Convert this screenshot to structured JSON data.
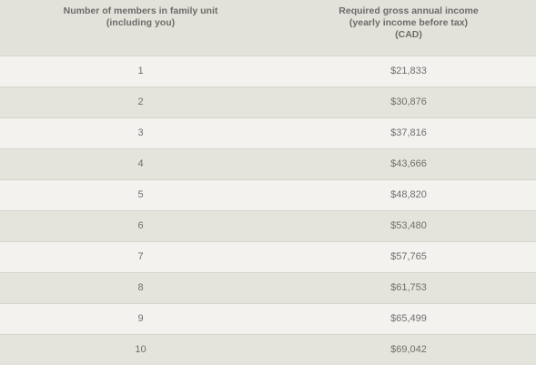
{
  "table": {
    "headers": {
      "members": [
        "Number of members in family unit",
        "(including you)"
      ],
      "income": [
        "Required gross annual income",
        "(yearly income before tax)",
        "(CAD)"
      ]
    },
    "rows": [
      {
        "members": "1",
        "income": "$21,833"
      },
      {
        "members": "2",
        "income": "$30,876"
      },
      {
        "members": "3",
        "income": "$37,816"
      },
      {
        "members": "4",
        "income": "$43,666"
      },
      {
        "members": "5",
        "income": "$48,820"
      },
      {
        "members": "6",
        "income": "$53,480"
      },
      {
        "members": "7",
        "income": "$57,765"
      },
      {
        "members": "8",
        "income": "$61,753"
      },
      {
        "members": "9",
        "income": "$65,499"
      },
      {
        "members": "10",
        "income": "$69,042"
      }
    ]
  }
}
